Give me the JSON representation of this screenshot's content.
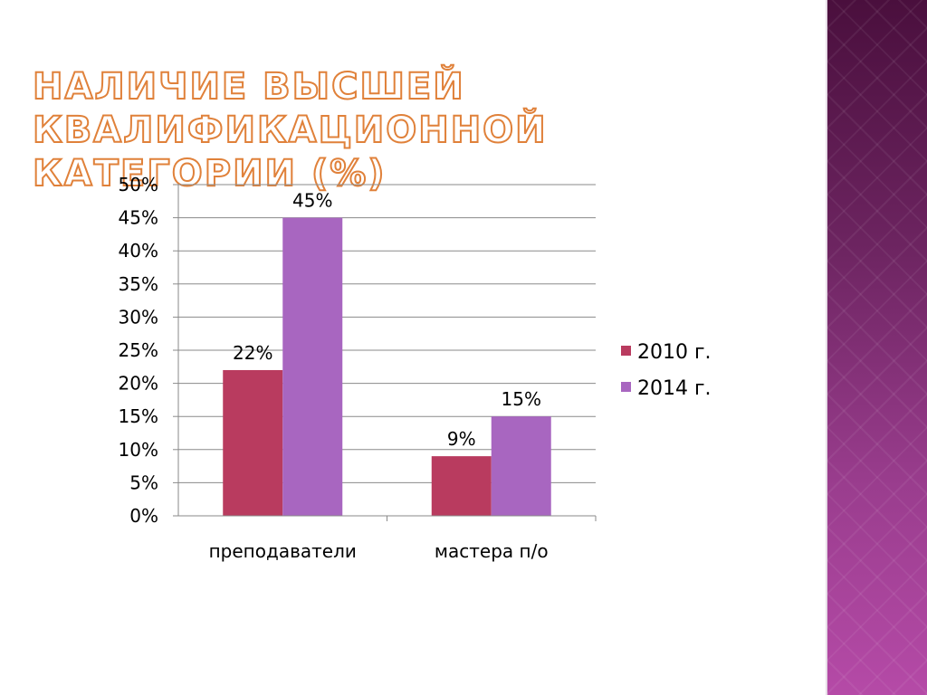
{
  "slide": {
    "title": "Наличие высшей квалификационной категории (%)"
  },
  "chart_data": {
    "type": "bar",
    "categories": [
      "преподаватели",
      "мастера п/о"
    ],
    "series": [
      {
        "name": "2010 г.",
        "values": [
          22,
          9
        ],
        "labels": [
          "22%",
          "9%"
        ],
        "color": "#b93b5f"
      },
      {
        "name": "2014 г.",
        "values": [
          45,
          15
        ],
        "labels": [
          "45%",
          "15%"
        ],
        "color": "#a866c0"
      }
    ],
    "ylim": [
      0,
      50
    ],
    "yticks": [
      0,
      5,
      10,
      15,
      20,
      25,
      30,
      35,
      40,
      45,
      50
    ],
    "ytick_labels": [
      "0%",
      "5%",
      "10%",
      "15%",
      "20%",
      "25%",
      "30%",
      "35%",
      "40%",
      "45%",
      "50%"
    ],
    "grid": true,
    "legend_position": "right"
  },
  "colors": {
    "title_outline": "#e0813a",
    "gridline": "#8a8a8a"
  }
}
